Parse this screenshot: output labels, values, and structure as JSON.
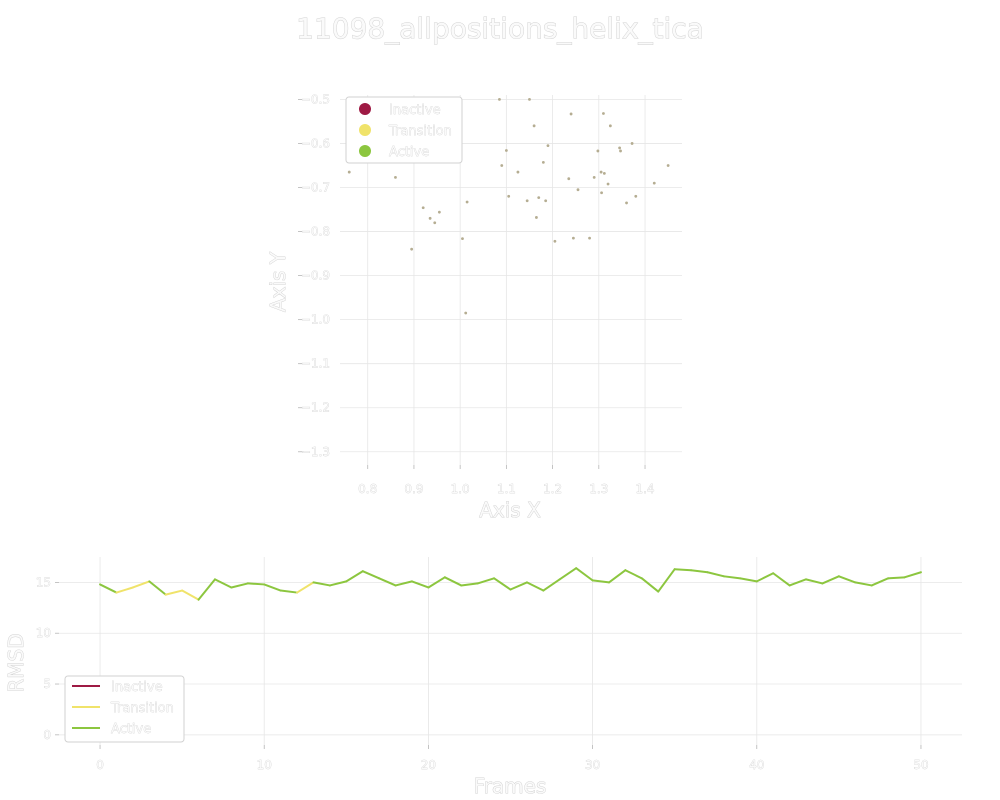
{
  "title": "11098_allpositions_helix_tica",
  "colors": {
    "Inactive": "#9e1a44",
    "Transition": "#f0e36a",
    "Active": "#8cc63f",
    "points": "#b5ad92"
  },
  "chart_data": [
    {
      "type": "scatter",
      "xlabel": "Axis X",
      "ylabel": "Axis Y",
      "xlim": [
        0.74,
        1.48
      ],
      "ylim": [
        -1.33,
        -0.49
      ],
      "xticks": [
        "0.8",
        "0.9",
        "1.0",
        "1.1",
        "1.2",
        "1.3",
        "1.4"
      ],
      "yticks": [
        "−0.5",
        "−0.6",
        "−0.7",
        "−0.8",
        "−0.9",
        "−1.0",
        "−1.1",
        "−1.2",
        "−1.3"
      ],
      "grid": true,
      "legend": {
        "placement": "upper-left",
        "entries": [
          "Inactive",
          "Transition",
          "Active"
        ]
      },
      "points": [
        {
          "x": 0.76,
          "y": -0.665
        },
        {
          "x": 0.86,
          "y": -0.677
        },
        {
          "x": 0.895,
          "y": -0.84
        },
        {
          "x": 0.92,
          "y": -0.746
        },
        {
          "x": 0.935,
          "y": -0.77
        },
        {
          "x": 0.945,
          "y": -0.78
        },
        {
          "x": 0.955,
          "y": -0.756
        },
        {
          "x": 1.0,
          "y": -0.575
        },
        {
          "x": 1.005,
          "y": -0.816
        },
        {
          "x": 1.012,
          "y": -0.985
        },
        {
          "x": 1.015,
          "y": -0.733
        },
        {
          "x": 1.085,
          "y": -0.5
        },
        {
          "x": 1.09,
          "y": -0.65
        },
        {
          "x": 1.1,
          "y": -0.616
        },
        {
          "x": 1.105,
          "y": -0.72
        },
        {
          "x": 1.125,
          "y": -0.665
        },
        {
          "x": 1.145,
          "y": -0.73
        },
        {
          "x": 1.15,
          "y": -0.5
        },
        {
          "x": 1.16,
          "y": -0.56
        },
        {
          "x": 1.165,
          "y": -0.768
        },
        {
          "x": 1.17,
          "y": -0.723
        },
        {
          "x": 1.18,
          "y": -0.643
        },
        {
          "x": 1.185,
          "y": -0.73
        },
        {
          "x": 1.19,
          "y": -0.605
        },
        {
          "x": 1.205,
          "y": -0.822
        },
        {
          "x": 1.235,
          "y": -0.68
        },
        {
          "x": 1.24,
          "y": -0.533
        },
        {
          "x": 1.245,
          "y": -0.815
        },
        {
          "x": 1.255,
          "y": -0.705
        },
        {
          "x": 1.28,
          "y": -0.815
        },
        {
          "x": 1.29,
          "y": -0.677
        },
        {
          "x": 1.298,
          "y": -0.617
        },
        {
          "x": 1.305,
          "y": -0.665
        },
        {
          "x": 1.306,
          "y": -0.712
        },
        {
          "x": 1.31,
          "y": -0.532
        },
        {
          "x": 1.312,
          "y": -0.668
        },
        {
          "x": 1.32,
          "y": -0.692
        },
        {
          "x": 1.325,
          "y": -0.56
        },
        {
          "x": 1.345,
          "y": -0.61
        },
        {
          "x": 1.347,
          "y": -0.617
        },
        {
          "x": 1.36,
          "y": -0.735
        },
        {
          "x": 1.372,
          "y": -0.6
        },
        {
          "x": 1.38,
          "y": -0.72
        },
        {
          "x": 1.42,
          "y": -0.69
        },
        {
          "x": 1.45,
          "y": -0.65
        }
      ]
    },
    {
      "type": "line",
      "xlabel": "Frames",
      "ylabel": "RMSD",
      "xlim": [
        -2.5,
        52.5
      ],
      "ylim": [
        -1,
        17.5
      ],
      "xticks": [
        "0",
        "10",
        "20",
        "30",
        "40",
        "50"
      ],
      "yticks": [
        "0",
        "5",
        "10",
        "15"
      ],
      "grid": true,
      "legend": {
        "placement": "lower-left",
        "entries": [
          "Inactive",
          "Transition",
          "Active"
        ]
      },
      "x": [
        0,
        1,
        2,
        3,
        4,
        5,
        6,
        7,
        8,
        9,
        10,
        11,
        12,
        13,
        14,
        15,
        16,
        17,
        18,
        19,
        20,
        21,
        22,
        23,
        24,
        25,
        26,
        27,
        28,
        29,
        30,
        31,
        32,
        33,
        34,
        35,
        36,
        37,
        38,
        39,
        40,
        41,
        42,
        43,
        44,
        45,
        46,
        47,
        48,
        49,
        50
      ],
      "y": [
        14.8,
        14.0,
        14.5,
        15.1,
        13.8,
        14.2,
        13.3,
        15.3,
        14.5,
        14.9,
        14.8,
        14.2,
        14.0,
        15.0,
        14.7,
        15.1,
        16.1,
        15.4,
        14.7,
        15.1,
        14.5,
        15.5,
        14.7,
        14.9,
        15.4,
        14.3,
        15.0,
        14.2,
        15.3,
        16.4,
        15.2,
        15.0,
        16.2,
        15.4,
        14.1,
        16.3,
        16.2,
        16.0,
        15.6,
        15.4,
        15.1,
        15.9,
        14.7,
        15.3,
        14.9,
        15.6,
        15.0,
        14.7,
        15.4,
        15.5,
        16.0
      ],
      "states": [
        "Active",
        "Transition",
        "Transition",
        "Active",
        "Transition",
        "Transition",
        "Active",
        "Active",
        "Active",
        "Active",
        "Active",
        "Active",
        "Transition",
        "Active",
        "Active",
        "Active",
        "Active",
        "Active",
        "Active",
        "Active",
        "Active",
        "Active",
        "Active",
        "Active",
        "Active",
        "Active",
        "Active",
        "Active",
        "Active",
        "Active",
        "Active",
        "Active",
        "Active",
        "Active",
        "Active",
        "Active",
        "Active",
        "Active",
        "Active",
        "Active",
        "Active",
        "Active",
        "Active",
        "Active",
        "Active",
        "Active",
        "Active",
        "Active",
        "Active",
        "Active",
        "Active"
      ]
    }
  ]
}
